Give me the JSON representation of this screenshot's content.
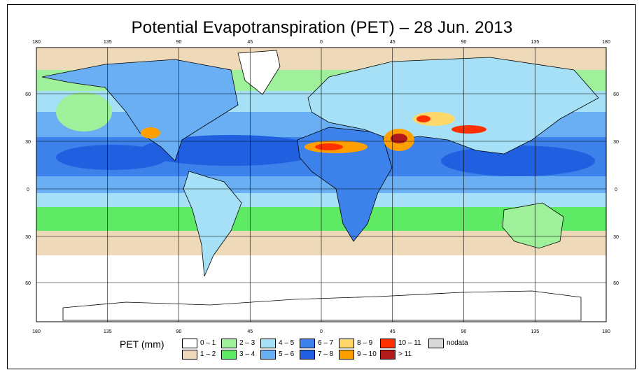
{
  "title": "Potential Evapotranspiration (PET) – 28 Jun. 2013",
  "map": {
    "lon_ticks": [
      "180",
      "135",
      "90",
      "45",
      "0",
      "45",
      "90",
      "135",
      "180"
    ],
    "lat_ticks": [
      "60",
      "30",
      "0",
      "30",
      "60"
    ]
  },
  "legend": {
    "title": "PET (mm)",
    "classes": [
      {
        "label": "0 – 1",
        "color": "#ffffff"
      },
      {
        "label": "1 – 2",
        "color": "#eed9b9"
      },
      {
        "label": "2 – 3",
        "color": "#9ff09a"
      },
      {
        "label": "3 – 4",
        "color": "#5eea64"
      },
      {
        "label": "4 – 5",
        "color": "#a5e0f6"
      },
      {
        "label": "5 – 6",
        "color": "#6aaef3"
      },
      {
        "label": "6 – 7",
        "color": "#3c82ea"
      },
      {
        "label": "7 – 8",
        "color": "#1f5fe0"
      },
      {
        "label": "8 – 9",
        "color": "#ffd86a"
      },
      {
        "label": "9 – 10",
        "color": "#ffa000"
      },
      {
        "label": "10 – 11",
        "color": "#ff3000"
      },
      {
        "label": "> 11",
        "color": "#b01a1a"
      },
      {
        "label": "nodata",
        "color": "#d9d9d9"
      }
    ]
  }
}
